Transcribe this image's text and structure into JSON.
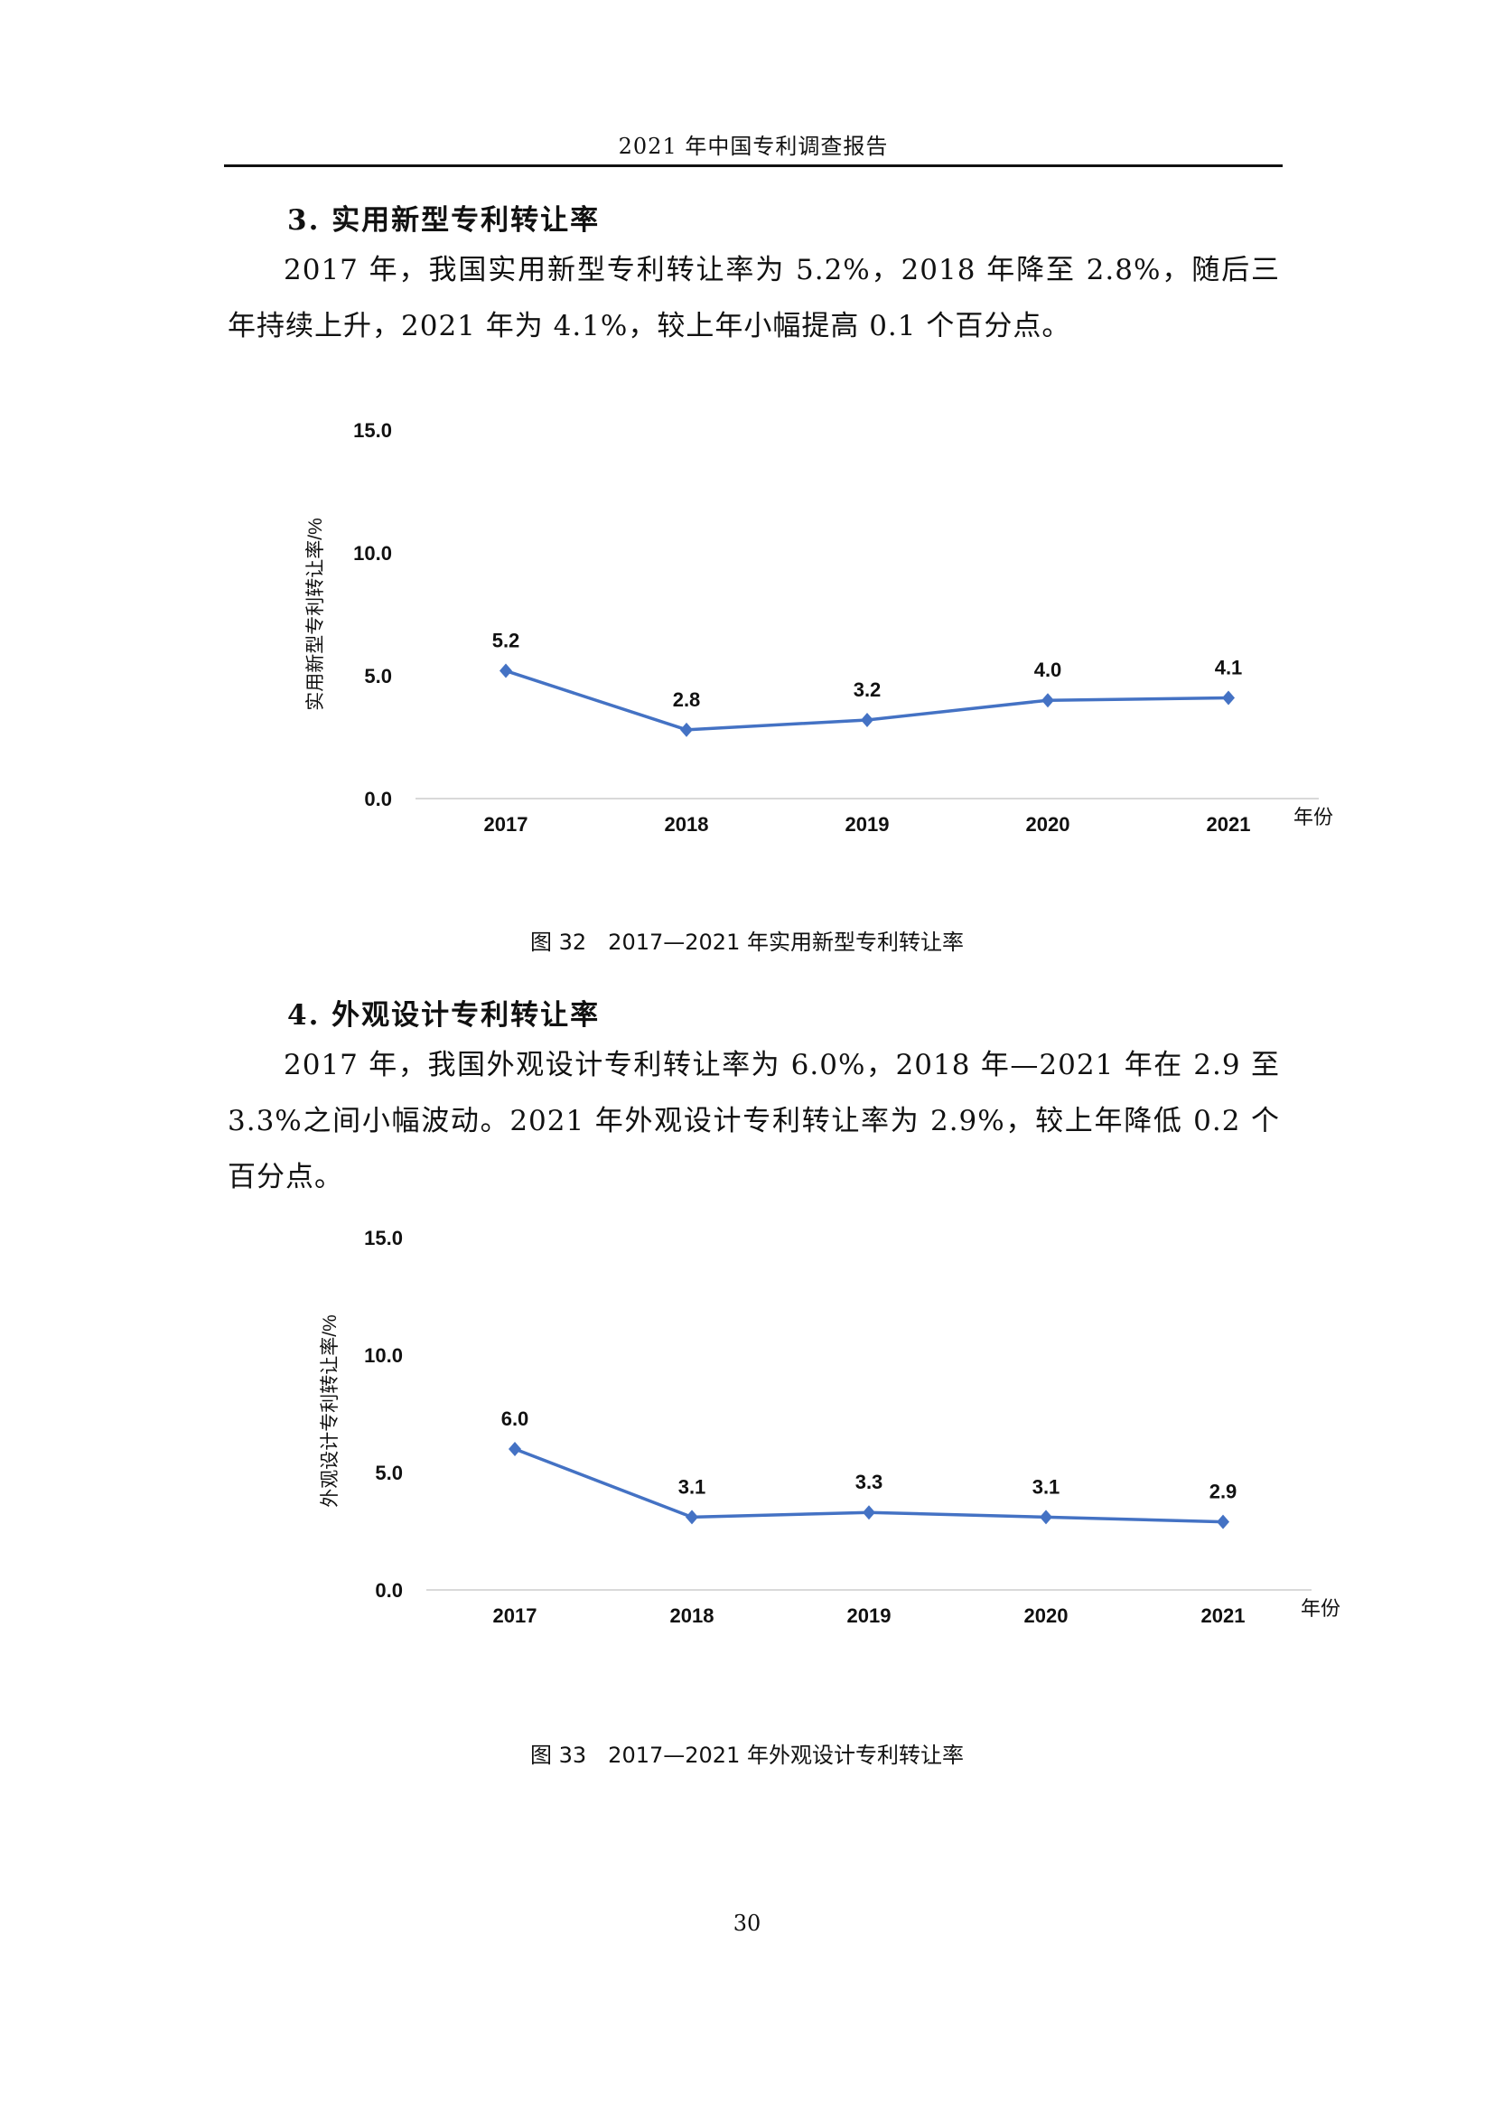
{
  "header": {
    "title": "2021 年中国专利调查报告"
  },
  "section3": {
    "heading": "3. 实用新型专利转让率",
    "paragraph": "2017 年，我国实用新型专利转让率为 5.2%，2018 年降至 2.8%，随后三年持续上升，2021 年为 4.1%，较上年小幅提高 0.1 个百分点。"
  },
  "section4": {
    "heading": "4. 外观设计专利转让率",
    "paragraph": "2017 年，我国外观设计专利转让率为 6.0%，2018 年—2021 年在 2.9 至 3.3%之间小幅波动。2021 年外观设计专利转让率为 2.9%，较上年降低 0.2 个百分点。"
  },
  "captions": {
    "fig32": "图 32　2017—2021 年实用新型专利转让率",
    "fig33": "图 33　2017—2021 年外观设计专利转让率"
  },
  "page_number": "30",
  "chart_data": [
    {
      "type": "line",
      "title": "",
      "categories": [
        "2017",
        "2018",
        "2019",
        "2020",
        "2021"
      ],
      "values": [
        5.2,
        2.8,
        3.2,
        4.0,
        4.1
      ],
      "labels": [
        "5.2",
        "2.8",
        "3.2",
        "4.0",
        "4.1"
      ],
      "xlabel": "年份",
      "ylabel": "实用新型专利转让率/%",
      "ylim": [
        0,
        15
      ],
      "yticks": [
        "0.0",
        "5.0",
        "10.0",
        "15.0"
      ],
      "ytick_values": [
        0,
        5,
        10,
        15
      ],
      "grid": false,
      "color": "#4472C4"
    },
    {
      "type": "line",
      "title": "",
      "categories": [
        "2017",
        "2018",
        "2019",
        "2020",
        "2021"
      ],
      "values": [
        6.0,
        3.1,
        3.3,
        3.1,
        2.9
      ],
      "labels": [
        "6.0",
        "3.1",
        "3.3",
        "3.1",
        "2.9"
      ],
      "xlabel": "年份",
      "ylabel": "外观设计专利转让率/%",
      "ylim": [
        0,
        15
      ],
      "yticks": [
        "0.0",
        "5.0",
        "10.0",
        "15.0"
      ],
      "ytick_values": [
        0,
        5,
        10,
        15
      ],
      "grid": false,
      "color": "#4472C4"
    }
  ]
}
